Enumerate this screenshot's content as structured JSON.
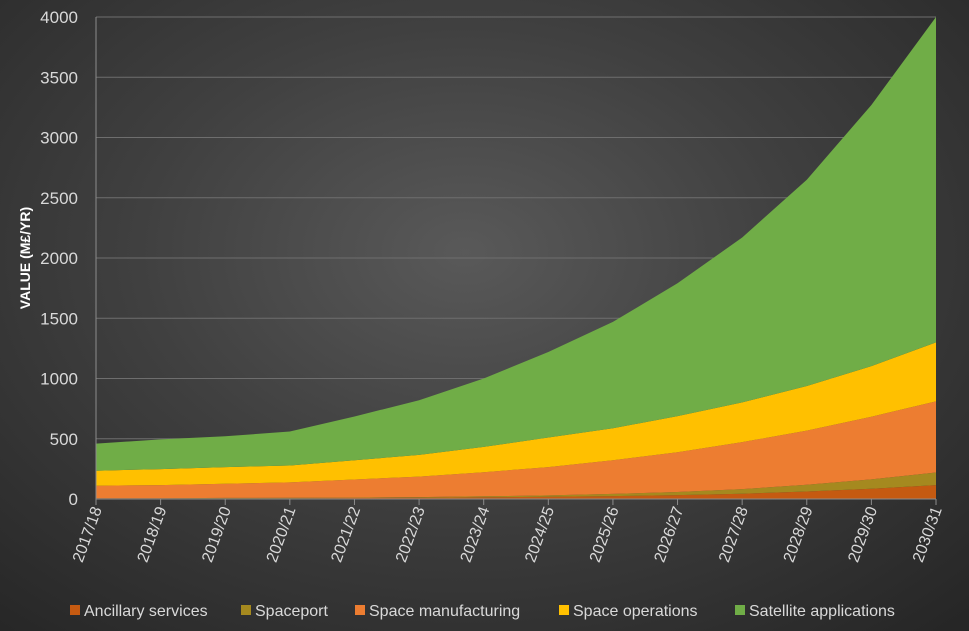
{
  "chart_data": {
    "type": "area",
    "stacked": true,
    "ylabel": "VALUE (M£/YR)",
    "xlabel": "",
    "ylim": [
      0,
      4000
    ],
    "yticks": [
      0,
      500,
      1000,
      1500,
      2000,
      2500,
      3000,
      3500,
      4000
    ],
    "grid": "horizontal",
    "legend": "bottom",
    "categories": [
      "2017/18",
      "2018/19",
      "2019/20",
      "2020/21",
      "2021/22",
      "2022/23",
      "2023/24",
      "2024/25",
      "2025/26",
      "2026/27",
      "2027/28",
      "2028/29",
      "2029/30",
      "2030/31"
    ],
    "series": [
      {
        "name": "Ancillary services",
        "color": "#c55a11",
        "values": [
          5,
          5,
          6,
          7,
          8,
          10,
          14,
          18,
          24,
          32,
          44,
          62,
          85,
          115
        ]
      },
      {
        "name": "Spaceport",
        "color": "#a5891f",
        "values": [
          2,
          2,
          3,
          3,
          4,
          6,
          8,
          12,
          18,
          26,
          38,
          56,
          78,
          105
        ]
      },
      {
        "name": "Space manufacturing",
        "color": "#ed7d31",
        "values": [
          103,
          108,
          118,
          128,
          150,
          170,
          200,
          235,
          280,
          330,
          390,
          450,
          520,
          590
        ]
      },
      {
        "name": "Space operations",
        "color": "#ffc000",
        "values": [
          125,
          133,
          138,
          140,
          160,
          180,
          210,
          245,
          265,
          300,
          330,
          370,
          420,
          490
        ]
      },
      {
        "name": "Satellite applications",
        "color": "#70ad47",
        "values": [
          225,
          247,
          255,
          282,
          363,
          454,
          568,
          710,
          883,
          1102,
          1368,
          1712,
          2167,
          2700
        ]
      }
    ]
  }
}
